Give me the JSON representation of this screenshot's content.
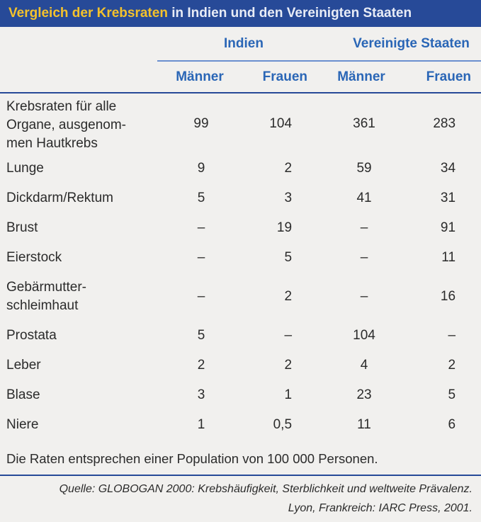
{
  "title": {
    "highlight": "Vergleich der Krebsraten",
    "rest": "in Indien und den Vereinigten Staaten"
  },
  "table": {
    "groups": [
      "Indien",
      "Vereinigte Staaten"
    ],
    "subheaders": [
      "Männer",
      "Frauen",
      "Männer",
      "Frauen"
    ],
    "rows": [
      {
        "label_lines": [
          "Krebsraten für alle",
          "Organe, ausgenom-",
          "men Hautkrebs"
        ],
        "values": [
          "99",
          "104",
          "361",
          "283"
        ]
      },
      {
        "label_lines": [
          "Lunge"
        ],
        "values": [
          "9",
          "2",
          "59",
          "34"
        ]
      },
      {
        "label_lines": [
          "Dickdarm/Rektum"
        ],
        "values": [
          "5",
          "3",
          "41",
          "31"
        ]
      },
      {
        "label_lines": [
          "Brust"
        ],
        "values": [
          "–",
          "19",
          "–",
          "91"
        ]
      },
      {
        "label_lines": [
          "Eierstock"
        ],
        "values": [
          "–",
          "5",
          "–",
          "11"
        ]
      },
      {
        "label_lines": [
          "Gebärmutter-",
          "schleimhaut"
        ],
        "values": [
          "–",
          "2",
          "–",
          "16"
        ]
      },
      {
        "label_lines": [
          "Prostata"
        ],
        "values": [
          "5",
          "–",
          "104",
          "–"
        ]
      },
      {
        "label_lines": [
          "Leber"
        ],
        "values": [
          "2",
          "2",
          "4",
          "2"
        ]
      },
      {
        "label_lines": [
          "Blase"
        ],
        "values": [
          "3",
          "1",
          "23",
          "5"
        ]
      },
      {
        "label_lines": [
          "Niere"
        ],
        "values": [
          "1",
          "0,5",
          "11",
          "6"
        ]
      }
    ]
  },
  "note": "Die Raten entsprechen einer Population von 100 000 Personen.",
  "source": {
    "line1": "Quelle: GLOBOGAN 2000: Krebshäufigkeit, Sterblichkeit und weltweite Prävalenz.",
    "line2": "Lyon, Frankreich: IARC Press, 2001."
  },
  "colors": {
    "title_bg": "#274a98",
    "title_highlight": "#f4c22c",
    "header_text": "#2a66b6",
    "background": "#f1f0ee"
  }
}
